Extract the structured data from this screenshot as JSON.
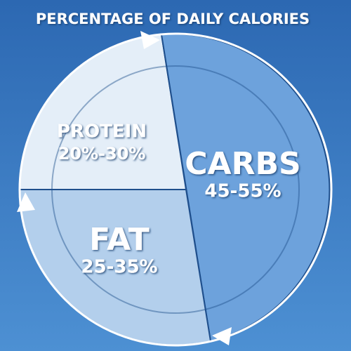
{
  "header": {
    "title": "PERCENTAGE OF DAILY CALORIES"
  },
  "segments": [
    {
      "label": "PROTEIN",
      "range": "20%-30%"
    },
    {
      "label": "CARBS",
      "range": "45-55%"
    },
    {
      "label": "FAT",
      "range": "25-35%"
    }
  ]
}
